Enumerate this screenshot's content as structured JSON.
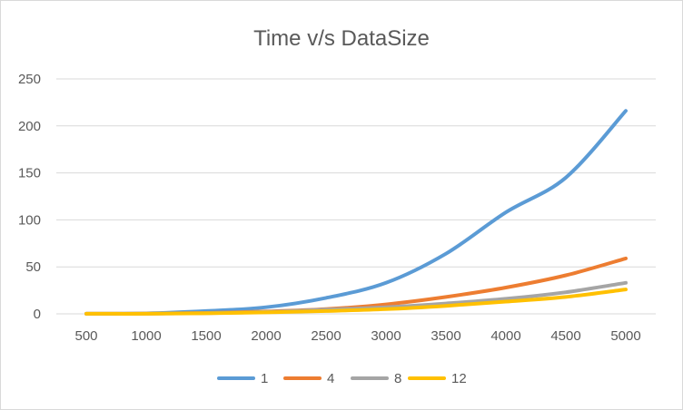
{
  "chart_data": {
    "type": "line",
    "title": "Time v/s DataSize",
    "xlabel": "",
    "ylabel": "",
    "categories": [
      "500",
      "1000",
      "1500",
      "2000",
      "2500",
      "3000",
      "3500",
      "4000",
      "4500",
      "5000"
    ],
    "ylim": [
      0,
      250
    ],
    "yticks": [
      0,
      50,
      100,
      150,
      200,
      250
    ],
    "grid": true,
    "legend_position": "bottom",
    "series": [
      {
        "name": "1",
        "color": "#5B9BD5",
        "values": [
          0.1,
          0.5,
          3,
          7,
          17,
          33,
          64,
          108,
          145,
          216
        ]
      },
      {
        "name": "4",
        "color": "#ED7D31",
        "values": [
          0.05,
          0.2,
          1,
          2.5,
          5,
          10,
          18,
          28,
          41,
          59
        ]
      },
      {
        "name": "8",
        "color": "#A5A5A5",
        "values": [
          0.05,
          0.15,
          0.8,
          2,
          4.5,
          7,
          11,
          16,
          23,
          33
        ]
      },
      {
        "name": "12",
        "color": "#FFC000",
        "values": [
          0.05,
          0.1,
          0.6,
          1.5,
          3,
          5,
          8.5,
          13,
          18,
          26
        ]
      }
    ]
  }
}
